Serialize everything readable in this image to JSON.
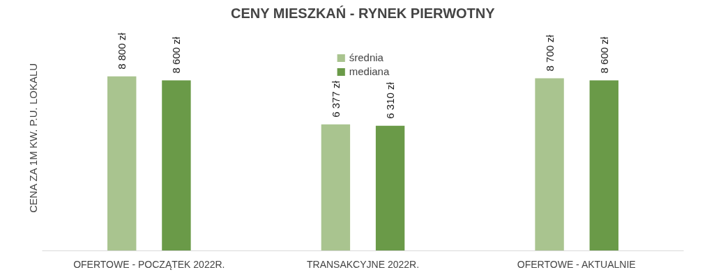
{
  "chart_data": {
    "type": "bar",
    "title": "CENY MIESZKAŃ - RYNEK PIERWOTNY",
    "ylabel": "CENA ZA 1M KW. P.U. LOKALU",
    "categories": [
      "OFERTOWE - POCZĄTEK 2022R.",
      "TRANSAKCYJNE 2022R.",
      "OFERTOWE - AKTUALNIE"
    ],
    "series": [
      {
        "name": "średnia",
        "color": "#a9c48f",
        "values": [
          8800,
          6377,
          8700
        ],
        "value_labels": [
          "8 800 zł",
          "6 377 zł",
          "8 700 zł"
        ]
      },
      {
        "name": "mediana",
        "color": "#6a9a48",
        "values": [
          8600,
          6310,
          8600
        ],
        "value_labels": [
          "8 600 zł",
          "6 310 zł",
          "8 600 zł"
        ]
      }
    ],
    "tick_labels": "x",
    "grid": false,
    "legend": "top"
  }
}
